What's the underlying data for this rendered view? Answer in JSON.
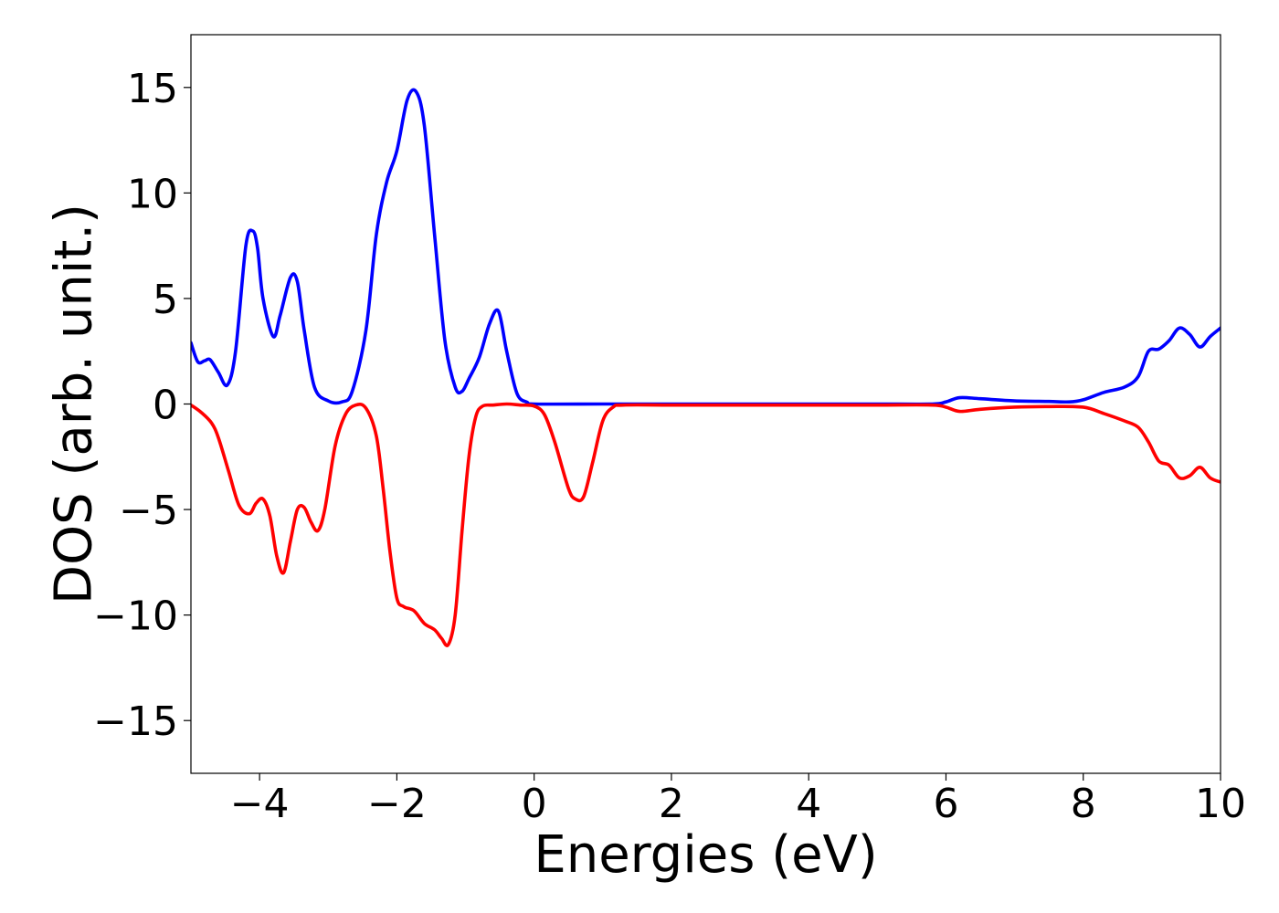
{
  "chart_data": {
    "type": "line",
    "title": "",
    "xlabel": "Energies (eV)",
    "ylabel": "DOS (arb. unit.)",
    "xlim": [
      -5,
      10
    ],
    "ylim": [
      -17.5,
      17.5
    ],
    "xticks": [
      -4,
      -2,
      0,
      2,
      4,
      6,
      8,
      10
    ],
    "xtick_labels": [
      "−4",
      "−2",
      "0",
      "2",
      "4",
      "6",
      "8",
      "10"
    ],
    "yticks": [
      15,
      10,
      5,
      0,
      -5,
      -10,
      -15
    ],
    "ytick_labels": [
      "15",
      "10",
      "5",
      "0",
      "−5",
      "−10",
      "−15"
    ],
    "grid": false,
    "legend": "none",
    "series": [
      {
        "color": "#0000ff",
        "x": [
          -5.0,
          -4.9,
          -4.8,
          -4.72,
          -4.6,
          -4.47,
          -4.35,
          -4.2,
          -4.1,
          -4.03,
          -3.95,
          -3.8,
          -3.7,
          -3.55,
          -3.45,
          -3.35,
          -3.2,
          -3.0,
          -2.8,
          -2.65,
          -2.45,
          -2.3,
          -2.15,
          -2.0,
          -1.85,
          -1.72,
          -1.6,
          -1.45,
          -1.3,
          -1.15,
          -1.05,
          -0.95,
          -0.8,
          -0.65,
          -0.52,
          -0.4,
          -0.25,
          -0.1,
          0.0,
          1.0,
          2.0,
          3.0,
          4.0,
          5.0,
          5.8,
          6.0,
          6.2,
          6.5,
          7.0,
          7.5,
          7.8,
          8.0,
          8.3,
          8.6,
          8.8,
          8.95,
          9.1,
          9.25,
          9.4,
          9.55,
          9.7,
          9.85,
          10.0
        ],
        "y": [
          2.9,
          2.0,
          2.05,
          2.1,
          1.5,
          0.9,
          2.5,
          7.5,
          8.2,
          7.4,
          5.0,
          3.2,
          4.2,
          6.0,
          5.8,
          3.5,
          0.8,
          0.15,
          0.1,
          0.6,
          3.5,
          8.0,
          10.5,
          12.0,
          14.4,
          14.8,
          13.2,
          8.0,
          3.0,
          0.8,
          0.6,
          1.2,
          2.2,
          3.8,
          4.4,
          2.5,
          0.5,
          0.08,
          0.0,
          0.0,
          0.0,
          0.0,
          0.0,
          0.0,
          0.0,
          0.1,
          0.3,
          0.25,
          0.15,
          0.12,
          0.1,
          0.2,
          0.55,
          0.8,
          1.3,
          2.5,
          2.6,
          3.0,
          3.6,
          3.3,
          2.7,
          3.2,
          3.6
        ]
      },
      {
        "color": "#ff0000",
        "x": [
          -5.0,
          -4.85,
          -4.7,
          -4.6,
          -4.45,
          -4.3,
          -4.15,
          -4.05,
          -3.95,
          -3.85,
          -3.75,
          -3.65,
          -3.55,
          -3.45,
          -3.35,
          -3.25,
          -3.15,
          -3.05,
          -2.9,
          -2.75,
          -2.6,
          -2.45,
          -2.3,
          -2.2,
          -2.1,
          -2.0,
          -1.9,
          -1.75,
          -1.6,
          -1.45,
          -1.35,
          -1.25,
          -1.15,
          -1.05,
          -0.95,
          -0.85,
          -0.75,
          -0.6,
          -0.4,
          -0.2,
          0.0,
          0.15,
          0.3,
          0.5,
          0.6,
          0.72,
          0.85,
          1.0,
          1.15,
          1.3,
          2.0,
          3.0,
          4.0,
          5.0,
          5.8,
          6.0,
          6.2,
          6.5,
          7.0,
          7.5,
          8.0,
          8.3,
          8.6,
          8.8,
          8.95,
          9.1,
          9.25,
          9.4,
          9.55,
          9.7,
          9.85,
          10.0
        ],
        "y": [
          -0.05,
          -0.4,
          -0.9,
          -1.6,
          -3.2,
          -4.8,
          -5.2,
          -4.7,
          -4.5,
          -5.3,
          -7.2,
          -8.0,
          -6.5,
          -5.0,
          -4.9,
          -5.6,
          -6.0,
          -5.0,
          -2.0,
          -0.5,
          -0.05,
          -0.2,
          -1.5,
          -4.0,
          -7.0,
          -9.2,
          -9.6,
          -9.8,
          -10.4,
          -10.7,
          -11.1,
          -11.4,
          -10.0,
          -6.0,
          -2.5,
          -0.6,
          -0.1,
          -0.05,
          0.0,
          -0.05,
          -0.1,
          -0.5,
          -1.8,
          -4.0,
          -4.5,
          -4.4,
          -2.8,
          -0.8,
          -0.15,
          -0.05,
          -0.05,
          -0.05,
          -0.05,
          -0.05,
          -0.05,
          -0.15,
          -0.35,
          -0.25,
          -0.15,
          -0.12,
          -0.15,
          -0.45,
          -0.8,
          -1.1,
          -1.8,
          -2.7,
          -2.9,
          -3.5,
          -3.4,
          -3.0,
          -3.5,
          -3.7
        ]
      }
    ]
  }
}
